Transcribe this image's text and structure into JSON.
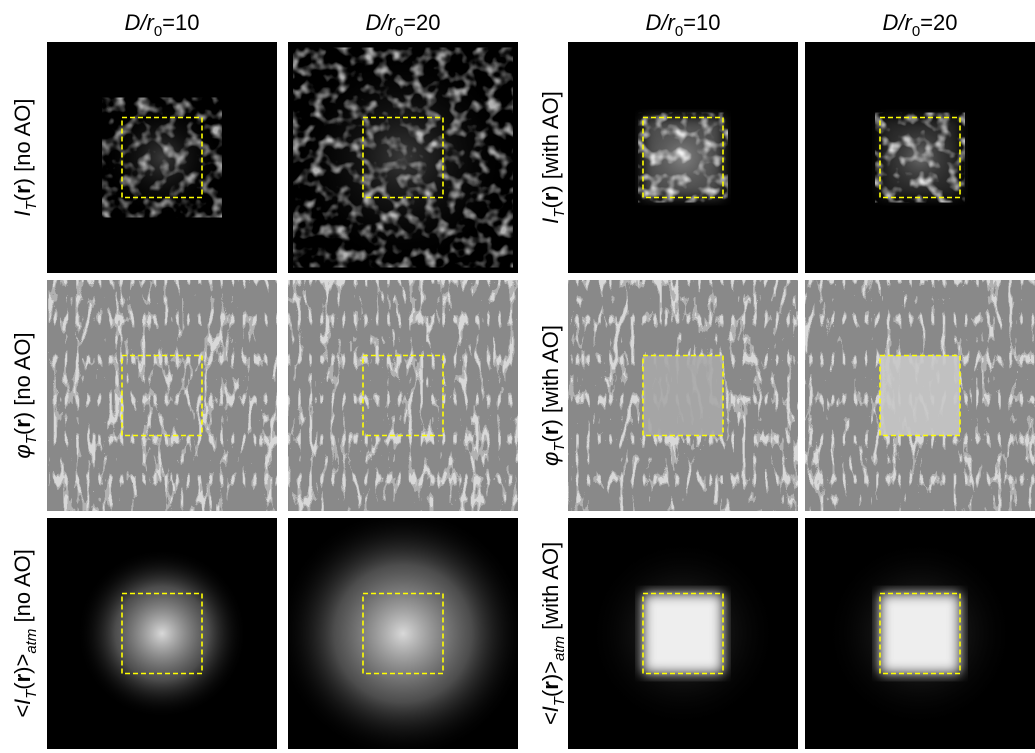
{
  "columns": [
    {
      "header": [
        "D/r",
        "0",
        "=10"
      ]
    },
    {
      "header": [
        "D/r",
        "0",
        "=20"
      ]
    },
    {
      "header": [
        "D/r",
        "0",
        "=10"
      ]
    },
    {
      "header": [
        "D/r",
        "0",
        "=20"
      ]
    }
  ],
  "rows": [
    {
      "label_left": [
        "I",
        "T",
        "(",
        "r",
        ") [no AO]"
      ],
      "label_right": [
        "I",
        "T",
        "(",
        "r",
        ") [with AO]"
      ]
    },
    {
      "label_left": [
        "φ",
        "T",
        "(",
        "r",
        ") [no AO]"
      ],
      "label_right": [
        "φ",
        "T",
        "(",
        "r",
        ") [with AO]"
      ]
    },
    {
      "label_left": [
        "<I",
        "T",
        "(",
        "r",
        ")>",
        "atm",
        " [no AO]"
      ],
      "label_right": [
        "<I",
        "T",
        "(",
        "r",
        ")>",
        "atm",
        " [with AO]"
      ]
    }
  ]
}
